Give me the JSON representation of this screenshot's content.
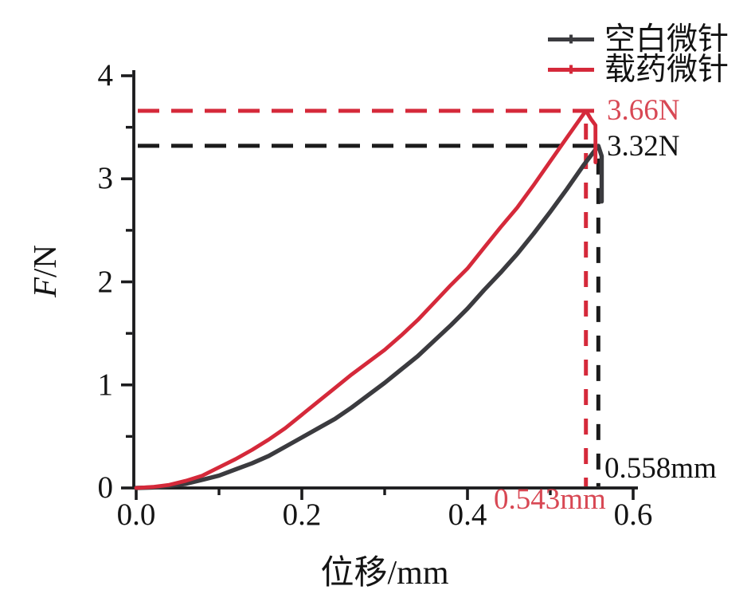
{
  "chart_data": {
    "type": "line",
    "title": "",
    "xlabel": "位移/mm",
    "ylabel": "F/N",
    "ylabel_italic_part": "F",
    "ylabel_rest": "/N",
    "xlim": [
      0.0,
      0.6
    ],
    "ylim": [
      0,
      4
    ],
    "grid": false,
    "legend_position": "top-right",
    "x_major_ticks": [
      {
        "v": 0.0,
        "label": "0.0"
      },
      {
        "v": 0.2,
        "label": "0.2"
      },
      {
        "v": 0.4,
        "label": "0.4"
      },
      {
        "v": 0.6,
        "label": "0.6"
      }
    ],
    "x_minor_ticks": [
      0.1,
      0.3,
      0.5
    ],
    "y_major_ticks": [
      {
        "v": 0,
        "label": "0"
      },
      {
        "v": 1,
        "label": "1"
      },
      {
        "v": 2,
        "label": "2"
      },
      {
        "v": 3,
        "label": "3"
      },
      {
        "v": 4,
        "label": "4"
      }
    ],
    "y_minor_ticks": [
      0.5,
      1.5,
      2.5,
      3.5
    ],
    "series": [
      {
        "name": "空白微针",
        "color": "#3b3b3f",
        "peak": {
          "force_N": 3.32,
          "displacement_mm": 0.558
        },
        "points": [
          [
            0.0,
            0.0
          ],
          [
            0.02,
            0.005
          ],
          [
            0.04,
            0.02
          ],
          [
            0.06,
            0.04
          ],
          [
            0.08,
            0.08
          ],
          [
            0.1,
            0.12
          ],
          [
            0.12,
            0.18
          ],
          [
            0.14,
            0.24
          ],
          [
            0.16,
            0.31
          ],
          [
            0.18,
            0.4
          ],
          [
            0.2,
            0.49
          ],
          [
            0.22,
            0.58
          ],
          [
            0.24,
            0.67
          ],
          [
            0.26,
            0.78
          ],
          [
            0.28,
            0.9
          ],
          [
            0.3,
            1.02
          ],
          [
            0.32,
            1.15
          ],
          [
            0.34,
            1.28
          ],
          [
            0.36,
            1.43
          ],
          [
            0.38,
            1.58
          ],
          [
            0.4,
            1.74
          ],
          [
            0.42,
            1.92
          ],
          [
            0.44,
            2.09
          ],
          [
            0.46,
            2.27
          ],
          [
            0.48,
            2.47
          ],
          [
            0.5,
            2.68
          ],
          [
            0.52,
            2.9
          ],
          [
            0.54,
            3.13
          ],
          [
            0.558,
            3.32
          ],
          [
            0.562,
            3.22
          ],
          [
            0.562,
            2.78
          ]
        ]
      },
      {
        "name": "载药微针",
        "color": "#d5293a",
        "peak": {
          "force_N": 3.66,
          "displacement_mm": 0.543
        },
        "points": [
          [
            0.0,
            0.0
          ],
          [
            0.02,
            0.01
          ],
          [
            0.04,
            0.03
          ],
          [
            0.06,
            0.07
          ],
          [
            0.08,
            0.12
          ],
          [
            0.1,
            0.2
          ],
          [
            0.12,
            0.28
          ],
          [
            0.14,
            0.37
          ],
          [
            0.16,
            0.47
          ],
          [
            0.18,
            0.58
          ],
          [
            0.2,
            0.71
          ],
          [
            0.22,
            0.84
          ],
          [
            0.24,
            0.97
          ],
          [
            0.26,
            1.1
          ],
          [
            0.28,
            1.22
          ],
          [
            0.3,
            1.34
          ],
          [
            0.32,
            1.48
          ],
          [
            0.34,
            1.63
          ],
          [
            0.36,
            1.8
          ],
          [
            0.38,
            1.97
          ],
          [
            0.4,
            2.13
          ],
          [
            0.42,
            2.33
          ],
          [
            0.44,
            2.53
          ],
          [
            0.46,
            2.72
          ],
          [
            0.48,
            2.94
          ],
          [
            0.5,
            3.17
          ],
          [
            0.52,
            3.4
          ],
          [
            0.543,
            3.66
          ],
          [
            0.549,
            3.58
          ],
          [
            0.5545,
            3.52
          ],
          [
            0.5545,
            3.16
          ]
        ]
      }
    ],
    "guides": [
      {
        "series": "载药微针",
        "color": "#d5293a",
        "force": 3.66,
        "displacement": 0.543,
        "force_label": "3.66N",
        "displacement_label": "0.543mm"
      },
      {
        "series": "空白微针",
        "color": "#1b1b1b",
        "force": 3.32,
        "displacement": 0.558,
        "force_label": "3.32N",
        "displacement_label": "0.558mm"
      }
    ],
    "colors": {
      "red": "#d5293a",
      "red_text": "#d84854",
      "dark": "#3b3b3f",
      "axis": "#1b1b1d",
      "text": "#141414"
    }
  }
}
